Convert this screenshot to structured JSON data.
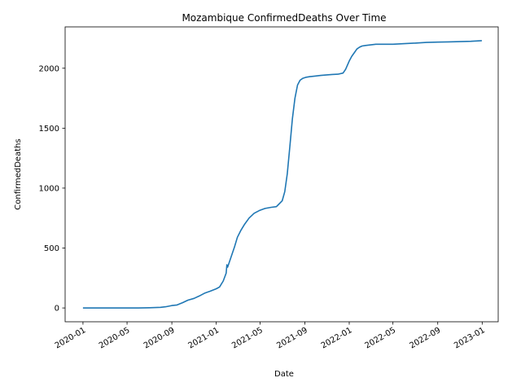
{
  "chart_data": {
    "type": "line",
    "title": "Mozambique  ConfirmedDeaths Over Time",
    "xlabel": "Date",
    "ylabel": "ConfirmedDeaths",
    "xlim": [
      "2019-11-13",
      "2023-02-14"
    ],
    "ylim": [
      -115,
      2345
    ],
    "x_ticks": [
      "2020-01",
      "2020-05",
      "2020-09",
      "2021-01",
      "2021-05",
      "2021-09",
      "2022-01",
      "2022-05",
      "2022-09",
      "2023-01"
    ],
    "y_ticks": [
      0,
      500,
      1000,
      1500,
      2000
    ],
    "grid": false,
    "legend": "none",
    "line_color": "#1f77b4",
    "series": [
      {
        "x": [
          "2020-01-01",
          "2020-03-01",
          "2020-04-01",
          "2020-05-01",
          "2020-06-01",
          "2020-07-01",
          "2020-08-01",
          "2020-08-15",
          "2020-09-01",
          "2020-09-15",
          "2020-10-01",
          "2020-10-15",
          "2020-11-01",
          "2020-11-15",
          "2020-12-01",
          "2020-12-15",
          "2021-01-01",
          "2021-01-10",
          "2021-01-20",
          "2021-01-28",
          "2021-01-30",
          "2021-02-01",
          "2021-02-10",
          "2021-02-20",
          "2021-02-28",
          "2021-03-10",
          "2021-03-20",
          "2021-04-01",
          "2021-04-15",
          "2021-05-01",
          "2021-05-15",
          "2021-06-01",
          "2021-06-15",
          "2021-06-20",
          "2021-07-01",
          "2021-07-08",
          "2021-07-15",
          "2021-07-22",
          "2021-07-29",
          "2021-08-05",
          "2021-08-12",
          "2021-08-19",
          "2021-08-26",
          "2021-09-05",
          "2021-09-15",
          "2021-10-01",
          "2021-10-15",
          "2021-11-01",
          "2021-11-15",
          "2021-12-01",
          "2021-12-15",
          "2021-12-22",
          "2022-01-01",
          "2022-01-08",
          "2022-01-15",
          "2022-01-22",
          "2022-01-29",
          "2022-02-05",
          "2022-02-15",
          "2022-03-01",
          "2022-03-15",
          "2022-04-01",
          "2022-05-01",
          "2022-06-01",
          "2022-07-01",
          "2022-08-01",
          "2022-09-01",
          "2022-10-01",
          "2022-11-01",
          "2022-12-01",
          "2022-12-31"
        ],
        "values": [
          0,
          0,
          0,
          0,
          0,
          2,
          5,
          10,
          20,
          25,
          45,
          65,
          80,
          100,
          125,
          140,
          160,
          175,
          225,
          290,
          360,
          340,
          420,
          510,
          590,
          650,
          700,
          750,
          790,
          815,
          830,
          840,
          845,
          860,
          895,
          970,
          1120,
          1350,
          1580,
          1750,
          1860,
          1900,
          1915,
          1925,
          1930,
          1935,
          1940,
          1945,
          1948,
          1950,
          1960,
          1990,
          2060,
          2100,
          2130,
          2160,
          2175,
          2185,
          2190,
          2195,
          2200,
          2200,
          2200,
          2205,
          2210,
          2215,
          2218,
          2220,
          2222,
          2225,
          2230
        ]
      }
    ]
  }
}
